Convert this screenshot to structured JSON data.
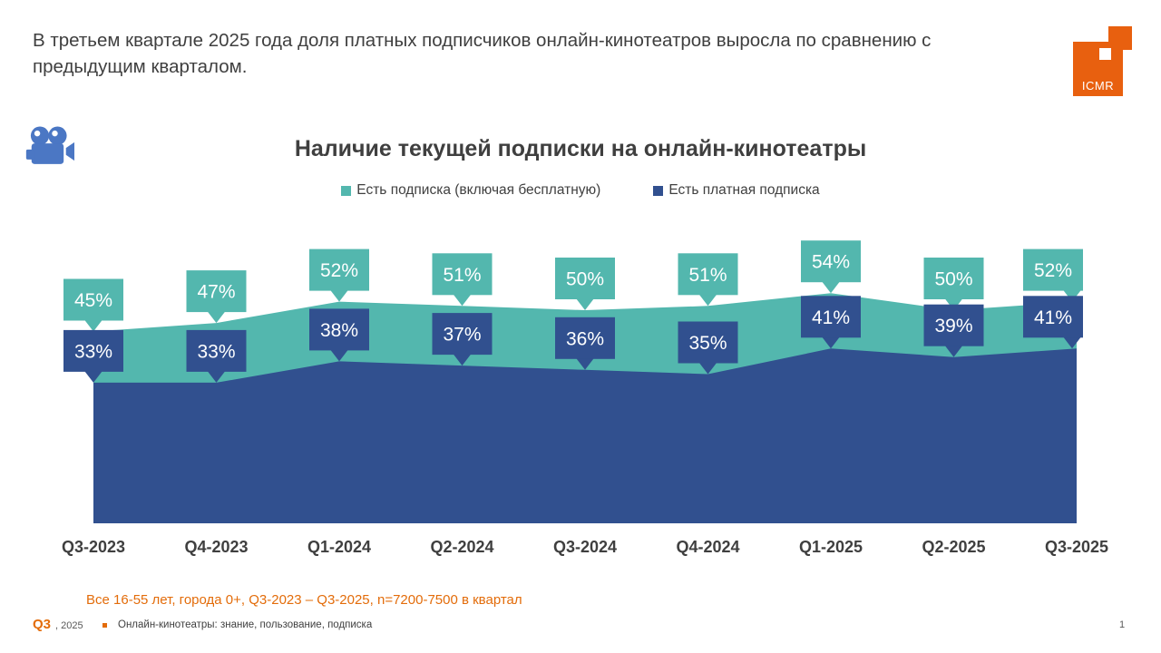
{
  "header": {
    "statement": "В третьем квартале 2025 года доля платных подписчиков онлайн-кинотеатров выросла по сравнению с предыдущим кварталом."
  },
  "logo": {
    "text": "ICMR"
  },
  "chart": {
    "title": "Наличие текущей подписки на онлайн-кинотеатры"
  },
  "chart_data": {
    "type": "area",
    "title": "Наличие текущей подписки на онлайн-кинотеатры",
    "categories": [
      "Q3-2023",
      "Q4-2023",
      "Q1-2024",
      "Q2-2024",
      "Q3-2024",
      "Q4-2024",
      "Q1-2025",
      "Q2-2025",
      "Q3-2025"
    ],
    "series": [
      {
        "name": "Есть подписка (включая бесплатную)",
        "values": [
          45,
          47,
          52,
          51,
          50,
          51,
          54,
          50,
          52
        ],
        "color": "#53B7AE"
      },
      {
        "name": "Есть платная подписка",
        "values": [
          33,
          33,
          38,
          37,
          36,
          35,
          41,
          39,
          41
        ],
        "color": "#31508F"
      }
    ],
    "value_suffix": "%",
    "ylim": [
      0,
      72
    ],
    "grid": false,
    "legend_position": "top",
    "data_labels": "callout"
  },
  "footnote": "Все 16-55 лет, города 0+, Q3-2023 – Q3-2025, n=7200-7500 в квартал",
  "footer": {
    "quarter": "Q3",
    "year": ", 2025",
    "report": "Онлайн-кинотеатры: знание, пользование, подписка",
    "page": "1"
  },
  "colors": {
    "brand-orange": "#E8600F",
    "accent-orange": "#E36C0A",
    "camera-blue": "#4B77C4",
    "text-dark": "#3F3F3F"
  }
}
